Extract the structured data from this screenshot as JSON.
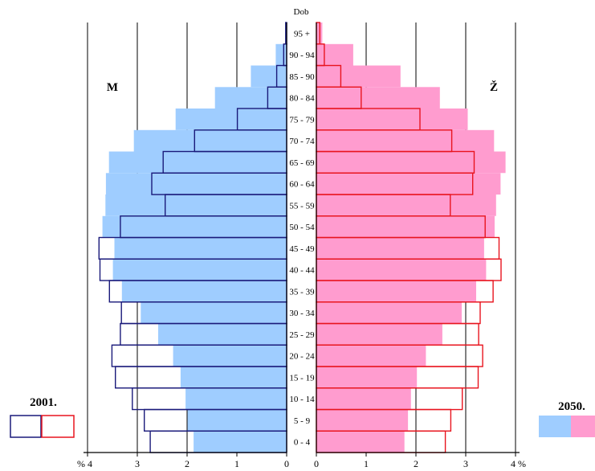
{
  "chart_data": {
    "type": "bar",
    "subtype": "population-pyramid",
    "age_header": "Dob",
    "left_label": "M",
    "right_label": "Ž",
    "x_ticks_left": [
      "% 4",
      "3",
      "2",
      "1",
      "0"
    ],
    "x_ticks_right": [
      "0",
      "1",
      "2",
      "3",
      "4 %"
    ],
    "xlim": [
      0,
      4
    ],
    "categories": [
      "95 +",
      "90 - 94",
      "85 - 90",
      "80 - 84",
      "75 - 79",
      "70 - 74",
      "65 - 69",
      "60 - 64",
      "55 - 59",
      "50 - 54",
      "45 - 49",
      "40 - 44",
      "35 - 39",
      "30 - 34",
      "25 - 29",
      "20 - 24",
      "15 - 19",
      "10 - 14",
      "5 - 9",
      "0 - 4"
    ],
    "series": [
      {
        "name": "2001.",
        "side": "male",
        "style": "outline",
        "values": [
          0.02,
          0.06,
          0.2,
          0.38,
          0.99,
          1.85,
          2.48,
          2.71,
          2.44,
          3.34,
          3.77,
          3.75,
          3.56,
          3.32,
          3.34,
          3.51,
          3.44,
          3.1,
          2.86,
          2.74
        ]
      },
      {
        "name": "2050.",
        "side": "male",
        "style": "filled",
        "values": [
          0.03,
          0.22,
          0.72,
          1.44,
          2.23,
          3.07,
          3.57,
          3.63,
          3.64,
          3.7,
          3.46,
          3.49,
          3.31,
          2.93,
          2.58,
          2.28,
          2.13,
          2.03,
          1.99,
          1.87
        ]
      },
      {
        "name": "2001.",
        "side": "female",
        "style": "outline",
        "values": [
          0.07,
          0.16,
          0.49,
          0.9,
          2.08,
          2.72,
          3.17,
          3.14,
          2.69,
          3.39,
          3.67,
          3.71,
          3.55,
          3.29,
          3.26,
          3.34,
          3.25,
          2.93,
          2.7,
          2.59
        ]
      },
      {
        "name": "2050.",
        "side": "female",
        "style": "filled",
        "values": [
          0.12,
          0.74,
          1.69,
          2.48,
          3.04,
          3.57,
          3.8,
          3.7,
          3.61,
          3.58,
          3.37,
          3.41,
          3.21,
          2.92,
          2.53,
          2.2,
          2.02,
          1.9,
          1.84,
          1.77
        ]
      }
    ],
    "legend": {
      "left_year": "2001.",
      "right_year": "2050."
    },
    "colors": {
      "male_fill": "#9fcdff",
      "female_fill": "#ff9ccf",
      "male_outline": "#1a1a7a",
      "female_outline": "#e8141e",
      "grid": "#000000"
    }
  }
}
